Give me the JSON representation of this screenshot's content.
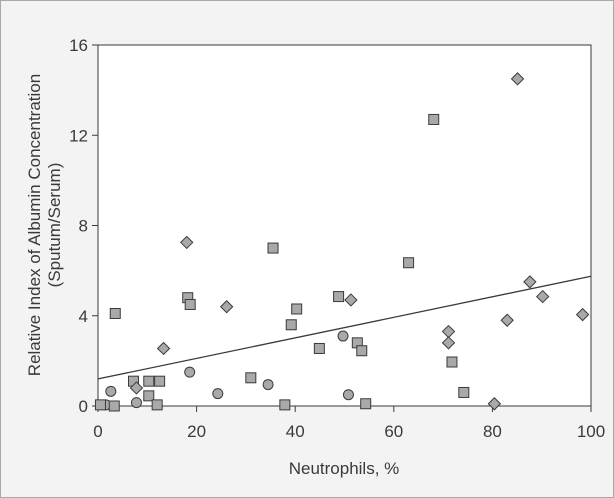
{
  "chart_data": {
    "type": "scatter",
    "title": "",
    "xlabel": "Neutrophils, %",
    "ylabel_line1": "Relative Index of Albumin Concentration",
    "ylabel_line2": "(Sputum/Serum)",
    "xlim": [
      0,
      100
    ],
    "ylim": [
      0,
      16
    ],
    "x_ticks": [
      "0",
      "20",
      "40",
      "60",
      "80",
      "100"
    ],
    "y_ticks": [
      "0",
      "4",
      "8",
      "12",
      "16"
    ],
    "grid": false,
    "legend": "none",
    "colors": {
      "marker_fill": "#a9a9a9",
      "marker_stroke": "#3a3a3a",
      "line": "#3a3a3a",
      "background": "#f3f3f3",
      "plot_bg": "#ffffff"
    },
    "series": [
      {
        "marker": "circle",
        "points": [
          [
            2.6,
            0.65
          ],
          [
            7.8,
            0.15
          ],
          [
            18.6,
            1.5
          ],
          [
            24.3,
            0.55
          ],
          [
            34.5,
            0.95
          ],
          [
            49.7,
            3.1
          ],
          [
            50.8,
            0.5
          ],
          [
            1.6,
            0.05
          ]
        ]
      },
      {
        "marker": "square",
        "points": [
          [
            0.5,
            0.05
          ],
          [
            3.3,
            0.0
          ],
          [
            3.5,
            4.1
          ],
          [
            7.2,
            1.1
          ],
          [
            10.3,
            1.1
          ],
          [
            10.3,
            0.45
          ],
          [
            12.0,
            0.05
          ],
          [
            12.5,
            1.1
          ],
          [
            18.2,
            4.8
          ],
          [
            18.7,
            4.5
          ],
          [
            31.0,
            1.25
          ],
          [
            35.5,
            7.0
          ],
          [
            37.9,
            0.05
          ],
          [
            39.2,
            3.6
          ],
          [
            40.3,
            4.3
          ],
          [
            44.9,
            2.55
          ],
          [
            48.8,
            4.85
          ],
          [
            52.6,
            2.8
          ],
          [
            53.5,
            2.45
          ],
          [
            54.3,
            0.1
          ],
          [
            63.0,
            6.35
          ],
          [
            68.1,
            12.7
          ],
          [
            71.8,
            1.95
          ],
          [
            74.2,
            0.6
          ]
        ]
      },
      {
        "marker": "diamond",
        "points": [
          [
            7.8,
            0.8
          ],
          [
            13.3,
            2.55
          ],
          [
            18.0,
            7.25
          ],
          [
            26.1,
            4.4
          ],
          [
            51.3,
            4.7
          ],
          [
            71.1,
            3.3
          ],
          [
            71.1,
            2.8
          ],
          [
            80.4,
            0.1
          ],
          [
            83.0,
            3.8
          ],
          [
            85.1,
            14.5
          ],
          [
            87.6,
            5.5
          ],
          [
            90.2,
            4.85
          ],
          [
            98.3,
            4.05
          ]
        ]
      }
    ],
    "trend_line": {
      "x": [
        0,
        100
      ],
      "y": [
        1.2,
        5.75
      ]
    }
  }
}
